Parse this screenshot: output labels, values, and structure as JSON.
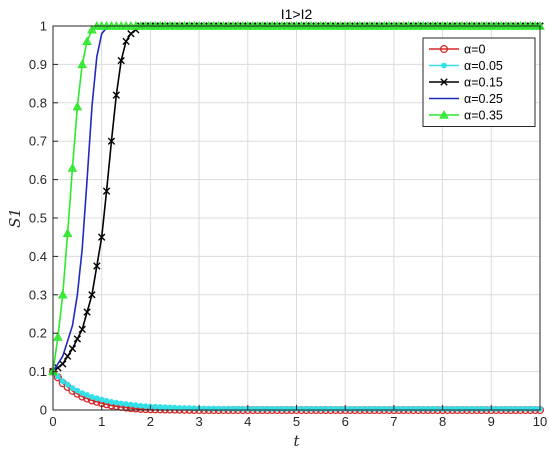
{
  "chart_data": {
    "type": "line",
    "title": "I1>I2",
    "xlabel": "t",
    "ylabel": "S1",
    "xlim": [
      0,
      10
    ],
    "ylim": [
      0,
      1
    ],
    "xticks": [
      "0",
      "1",
      "2",
      "3",
      "4",
      "5",
      "6",
      "7",
      "8",
      "9",
      "10"
    ],
    "yticks": [
      "0",
      "0.1",
      "0.2",
      "0.3",
      "0.4",
      "0.5",
      "0.6",
      "0.7",
      "0.8",
      "0.9",
      "1"
    ],
    "grid": true,
    "legend_position": "top-right",
    "series": [
      {
        "name": "α=0",
        "color": "#d62728",
        "marker": "circle",
        "x": [
          0,
          0.2,
          0.4,
          0.6,
          0.8,
          1.0,
          1.2,
          1.4,
          1.6,
          1.8,
          2.0,
          2.5,
          3,
          4,
          5,
          6,
          7,
          8,
          9,
          10
        ],
        "y": [
          0.1,
          0.07,
          0.05,
          0.035,
          0.025,
          0.018,
          0.012,
          0.008,
          0.005,
          0.003,
          0.002,
          0.001,
          0,
          0,
          0,
          0,
          0,
          0,
          0,
          0
        ]
      },
      {
        "name": "α=0.05",
        "color": "#33e0e8",
        "marker": "dot",
        "x": [
          0,
          0.2,
          0.4,
          0.6,
          0.8,
          1.0,
          1.2,
          1.4,
          1.6,
          1.8,
          2.0,
          2.5,
          3,
          4,
          5,
          6,
          7,
          8,
          9,
          10
        ],
        "y": [
          0.1,
          0.075,
          0.057,
          0.044,
          0.034,
          0.027,
          0.021,
          0.017,
          0.014,
          0.011,
          0.009,
          0.006,
          0.004,
          0.003,
          0.003,
          0.003,
          0.003,
          0.003,
          0.003,
          0.003
        ]
      },
      {
        "name": "α=0.15",
        "color": "#000000",
        "marker": "x",
        "x": [
          0,
          0.2,
          0.4,
          0.6,
          0.8,
          1.0,
          1.1,
          1.2,
          1.3,
          1.4,
          1.5,
          1.6,
          1.7,
          1.8,
          2.0,
          2.5,
          3,
          4,
          5,
          6,
          7,
          8,
          9,
          10
        ],
        "y": [
          0.1,
          0.12,
          0.16,
          0.21,
          0.3,
          0.45,
          0.57,
          0.7,
          0.82,
          0.91,
          0.96,
          0.98,
          0.99,
          1.0,
          1.0,
          1.0,
          1.0,
          1.0,
          1.0,
          1.0,
          1.0,
          1.0,
          1.0,
          1.0
        ]
      },
      {
        "name": "α=0.25",
        "color": "#1f2bbf",
        "marker": "none",
        "x": [
          0,
          0.2,
          0.4,
          0.5,
          0.6,
          0.7,
          0.8,
          0.9,
          1.0,
          1.1,
          1.2,
          1.4,
          1.6,
          2,
          3,
          4,
          5,
          6,
          7,
          8,
          9,
          10
        ],
        "y": [
          0.1,
          0.14,
          0.22,
          0.3,
          0.42,
          0.6,
          0.79,
          0.92,
          0.98,
          0.995,
          1.0,
          1.0,
          1.0,
          1.0,
          1.0,
          1.0,
          1.0,
          1.0,
          1.0,
          1.0,
          1.0,
          1.0
        ]
      },
      {
        "name": "α=0.35",
        "color": "#2ee82e",
        "marker": "triangle",
        "x": [
          0,
          0.1,
          0.2,
          0.3,
          0.4,
          0.5,
          0.6,
          0.7,
          0.8,
          0.9,
          1.0,
          1.2,
          1.5,
          2,
          3,
          4,
          5,
          6,
          7,
          8,
          9,
          10
        ],
        "y": [
          0.1,
          0.19,
          0.3,
          0.46,
          0.63,
          0.79,
          0.9,
          0.96,
          0.99,
          1.0,
          1.0,
          1.0,
          1.0,
          1.0,
          1.0,
          1.0,
          1.0,
          1.0,
          1.0,
          1.0,
          1.0,
          1.0
        ]
      }
    ]
  }
}
